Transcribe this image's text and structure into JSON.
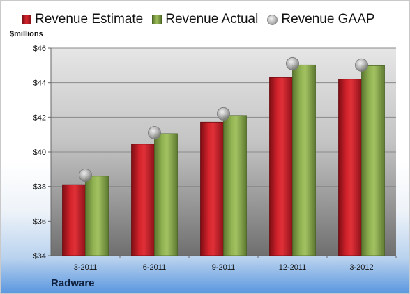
{
  "legend": {
    "estimate": "Revenue Estimate",
    "actual": "Revenue Actual",
    "gaap": "Revenue GAAP"
  },
  "unit_label": "$millions",
  "company": "Radware",
  "colors": {
    "estimate": "#c8161d",
    "actual": "#8fb04f",
    "gaap_marker": "#a6a6a6"
  },
  "chart_data": {
    "type": "bar",
    "categories": [
      "3-2011",
      "6-2011",
      "9-2011",
      "12-2011",
      "3-2012"
    ],
    "series": [
      {
        "name": "Revenue Estimate",
        "values": [
          38.1,
          40.45,
          41.72,
          44.3,
          44.2
        ]
      },
      {
        "name": "Revenue Actual",
        "values": [
          38.6,
          41.05,
          42.1,
          45.02,
          44.98
        ]
      },
      {
        "name": "Revenue GAAP",
        "values": [
          38.65,
          41.1,
          42.2,
          45.1,
          45.02
        ]
      }
    ],
    "ylabel": "$millions",
    "ylim": [
      34,
      46
    ],
    "yticks": [
      34,
      36,
      38,
      40,
      42,
      44,
      46
    ],
    "ytick_labels": [
      "$34",
      "$36",
      "$38",
      "$40",
      "$42",
      "$44",
      "$46"
    ],
    "grid": true,
    "legend_position": "top"
  }
}
